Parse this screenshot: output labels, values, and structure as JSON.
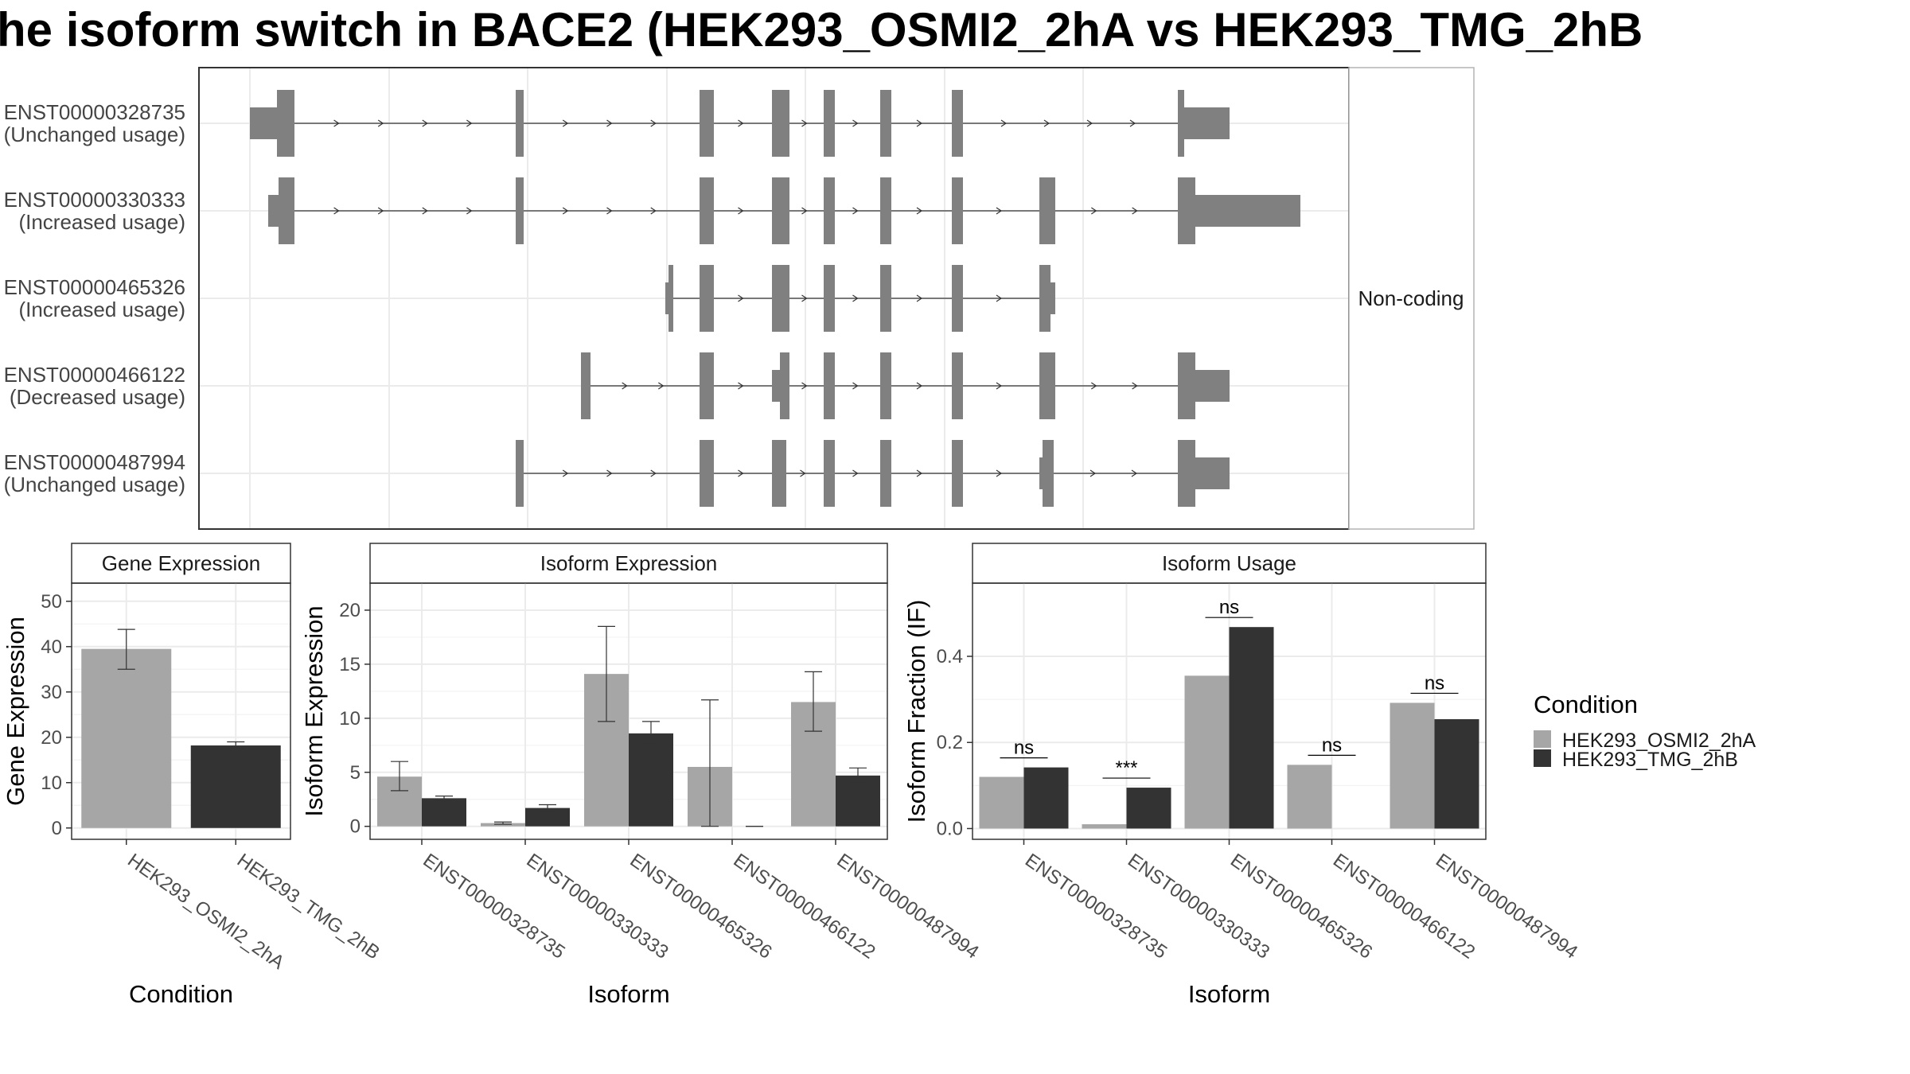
{
  "title": "he isoform switch in BACE2 (HEK293_OSMI2_2hA vs HEK293_TMG_2hB",
  "colors": {
    "HEK293_OSMI2_2hA": "#a6a6a6",
    "HEK293_TMG_2hB": "#333333",
    "structure": "#808080",
    "grid": "#ebebeb",
    "panel_border": "#333333"
  },
  "structure_panel": {
    "strip_label": "Non-coding",
    "isoforms": [
      {
        "id": "ENST00000328735",
        "usage": "(Unchanged usage)"
      },
      {
        "id": "ENST00000330333",
        "usage": "(Increased usage)"
      },
      {
        "id": "ENST00000465326",
        "usage": "(Increased usage)"
      },
      {
        "id": "ENST00000466122",
        "usage": "(Decreased usage)"
      },
      {
        "id": "ENST00000487994",
        "usage": "(Unchanged usage)"
      }
    ]
  },
  "legend": {
    "title": "Condition",
    "items": [
      "HEK293_OSMI2_2hA",
      "HEK293_TMG_2hB"
    ]
  },
  "chart_data": [
    {
      "type": "bar",
      "strip": "Gene Expression",
      "xlabel": "Condition",
      "ylabel": "Gene Expression",
      "categories": [
        "HEK293_OSMI2_2hA",
        "HEK293_TMG_2hB"
      ],
      "values": [
        39.5,
        18.2
      ],
      "errors": [
        [
          35.0,
          43.8
        ],
        [
          17.5,
          19.0
        ]
      ],
      "ylim": [
        -2.5,
        54
      ],
      "yticks": [
        0,
        10,
        20,
        30,
        40,
        50
      ],
      "grid": true
    },
    {
      "type": "bar",
      "strip": "Isoform Expression",
      "xlabel": "Isoform",
      "ylabel": "Isoform Expression",
      "categories": [
        "ENST00000328735",
        "ENST00000330333",
        "ENST00000465326",
        "ENST00000466122",
        "ENST00000487994"
      ],
      "series": [
        {
          "name": "HEK293_OSMI2_2hA",
          "values": [
            4.6,
            0.3,
            14.1,
            5.5,
            11.5
          ],
          "errors": [
            [
              3.3,
              6.0
            ],
            [
              0.2,
              0.4
            ],
            [
              9.7,
              18.5
            ],
            [
              0.0,
              11.7
            ],
            [
              8.8,
              14.3
            ]
          ]
        },
        {
          "name": "HEK293_TMG_2hB",
          "values": [
            2.6,
            1.7,
            8.6,
            0.0,
            4.7
          ],
          "errors": [
            [
              2.4,
              2.8
            ],
            [
              1.4,
              2.0
            ],
            [
              7.6,
              9.7
            ],
            [
              0.0,
              0.0
            ],
            [
              4.0,
              5.4
            ]
          ]
        }
      ],
      "ylim": [
        -1.2,
        22.5
      ],
      "yticks": [
        0,
        5,
        10,
        15,
        20
      ],
      "grid": true
    },
    {
      "type": "bar",
      "strip": "Isoform Usage",
      "xlabel": "Isoform",
      "ylabel": "Isoform Fraction (IF)",
      "categories": [
        "ENST00000328735",
        "ENST00000330333",
        "ENST00000465326",
        "ENST00000466122",
        "ENST00000487994"
      ],
      "series": [
        {
          "name": "HEK293_OSMI2_2hA",
          "values": [
            0.12,
            0.01,
            0.355,
            0.148,
            0.292
          ]
        },
        {
          "name": "HEK293_TMG_2hB",
          "values": [
            0.142,
            0.095,
            0.468,
            0.0,
            0.254
          ]
        }
      ],
      "significance": [
        "ns",
        "***",
        "ns",
        "ns",
        "ns"
      ],
      "ylim": [
        -0.025,
        0.57
      ],
      "yticks": [
        0.0,
        0.2,
        0.4
      ],
      "grid": true
    }
  ]
}
